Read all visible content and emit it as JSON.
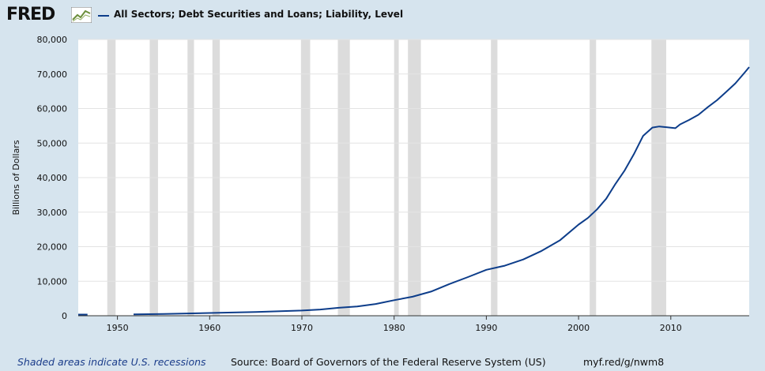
{
  "header": {
    "logo_text": "FRED",
    "logo_icon": "line-chart-icon",
    "series_label": "All Sectors; Debt Securities and Loans; Liability, Level"
  },
  "footer": {
    "recession_note": "Shaded areas indicate U.S. recessions",
    "source": "Source: Board of Governors of the Federal Reserve System (US)",
    "short_url": "myf.red/g/nwm8"
  },
  "colors": {
    "background": "#d6e4ee",
    "plot_bg": "#ffffff",
    "series": "#0d3d8a",
    "recession": "#dcdcdc",
    "grid": "#e3e3e3",
    "link": "#1a3c8a"
  },
  "chart_data": {
    "type": "line",
    "title": "",
    "xlabel": "",
    "ylabel": "Billions of Dollars",
    "xlim": [
      1945.75,
      2018.5
    ],
    "ylim": [
      0,
      80000
    ],
    "x_ticks": [
      1950,
      1960,
      1970,
      1980,
      1990,
      2000,
      2010
    ],
    "y_ticks": [
      0,
      10000,
      20000,
      30000,
      40000,
      50000,
      60000,
      70000,
      80000
    ],
    "y_tick_labels": [
      "0",
      "10,000",
      "20,000",
      "30,000",
      "40,000",
      "50,000",
      "60,000",
      "70,000",
      "80,000"
    ],
    "grid": true,
    "legend": "top-left",
    "recessions": [
      [
        1948.9,
        1949.8
      ],
      [
        1953.5,
        1954.4
      ],
      [
        1957.6,
        1958.3
      ],
      [
        1960.3,
        1961.1
      ],
      [
        1969.9,
        1970.9
      ],
      [
        1973.9,
        1975.2
      ],
      [
        1980.0,
        1980.5
      ],
      [
        1981.5,
        1982.9
      ],
      [
        1990.5,
        1991.2
      ],
      [
        2001.2,
        2001.9
      ],
      [
        2007.9,
        2009.5
      ]
    ],
    "series": [
      {
        "name": "All Sectors; Debt Securities and Loans; Liability, Level",
        "segments": [
          {
            "x": [
              1945.75,
              1946.75
            ],
            "y": [
              350,
              350
            ]
          },
          {
            "x": [
              1951.75,
              1955,
              1960,
              1965,
              1970,
              1972,
              1974,
              1976,
              1978,
              1980,
              1982,
              1984,
              1986,
              1988,
              1990,
              1992,
              1994,
              1996,
              1998,
              2000,
              2001,
              2002,
              2003,
              2004,
              2005,
              2006,
              2007,
              2008,
              2008.75,
              2009.5,
              2010.5,
              2011,
              2012,
              2013,
              2014,
              2015,
              2016,
              2017,
              2018,
              2018.5
            ],
            "y": [
              400,
              500,
              800,
              1100,
              1500,
              1800,
              2300,
              2700,
              3400,
              4500,
              5500,
              7000,
              9200,
              11200,
              13300,
              14500,
              16300,
              18800,
              21900,
              26400,
              28300,
              30800,
              33900,
              38200,
              42100,
              46800,
              52100,
              54500,
              54800,
              54600,
              54300,
              55400,
              56700,
              58200,
              60400,
              62400,
              64800,
              67300,
              70400,
              72000
            ]
          }
        ]
      }
    ]
  }
}
